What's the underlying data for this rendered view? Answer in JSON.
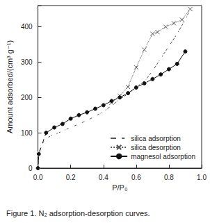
{
  "chart_data": {
    "type": "line",
    "caption": "Figure 1. N₂ adsorption-desorption curves.",
    "xlabel": "P/P₀",
    "ylabel": "Amount adsorbed/(cm³ g⁻¹)",
    "xlim": [
      0,
      1
    ],
    "xticks": [
      {
        "value": 0,
        "label": "0.0"
      },
      {
        "value": 0.2,
        "label": "0.2"
      },
      {
        "value": 0.4,
        "label": "0.4"
      },
      {
        "value": 0.6,
        "label": "0.6"
      },
      {
        "value": 0.8,
        "label": "0.8"
      },
      {
        "value": 1,
        "label": "1.0"
      }
    ],
    "ylim": [
      0,
      460
    ],
    "yticks": [
      0,
      100,
      200,
      300,
      400
    ],
    "legend": "lower right",
    "series": [
      {
        "name": "silica adsorption",
        "color": "#555555",
        "marker": "circle-open",
        "line_style": "dashed",
        "x": [
          0,
          0.005,
          0.02,
          0.05,
          0.1,
          0.15,
          0.2,
          0.25,
          0.3,
          0.35,
          0.4,
          0.45,
          0.5,
          0.55,
          0.6,
          0.65,
          0.7,
          0.75,
          0.8,
          0.85,
          0.9,
          0.93
        ],
        "values": [
          0,
          40,
          65,
          85,
          95,
          105,
          115,
          125,
          135,
          147,
          160,
          177,
          195,
          210,
          230,
          245,
          275,
          310,
          345,
          380,
          420,
          450
        ]
      },
      {
        "name": "silica desorption",
        "color": "#555555",
        "marker": "x",
        "line_style": "dotted",
        "x": [
          0.93,
          0.88,
          0.83,
          0.78,
          0.73,
          0.7,
          0.65,
          0.6,
          0.55,
          0.5,
          0.45
        ],
        "values": [
          450,
          420,
          410,
          400,
          385,
          380,
          335,
          285,
          230,
          205,
          185
        ]
      },
      {
        "name": "magnesol adsorption",
        "color": "#111111",
        "marker": "circle",
        "line_style": "solid",
        "x": [
          0,
          0.005,
          0.05,
          0.1,
          0.15,
          0.2,
          0.25,
          0.3,
          0.35,
          0.4,
          0.45,
          0.5,
          0.55,
          0.6,
          0.65,
          0.7,
          0.75,
          0.8,
          0.85,
          0.9
        ],
        "values": [
          0,
          40,
          100,
          115,
          125,
          140,
          150,
          158,
          168,
          178,
          190,
          200,
          212,
          228,
          240,
          252,
          265,
          280,
          295,
          330
        ]
      }
    ]
  }
}
